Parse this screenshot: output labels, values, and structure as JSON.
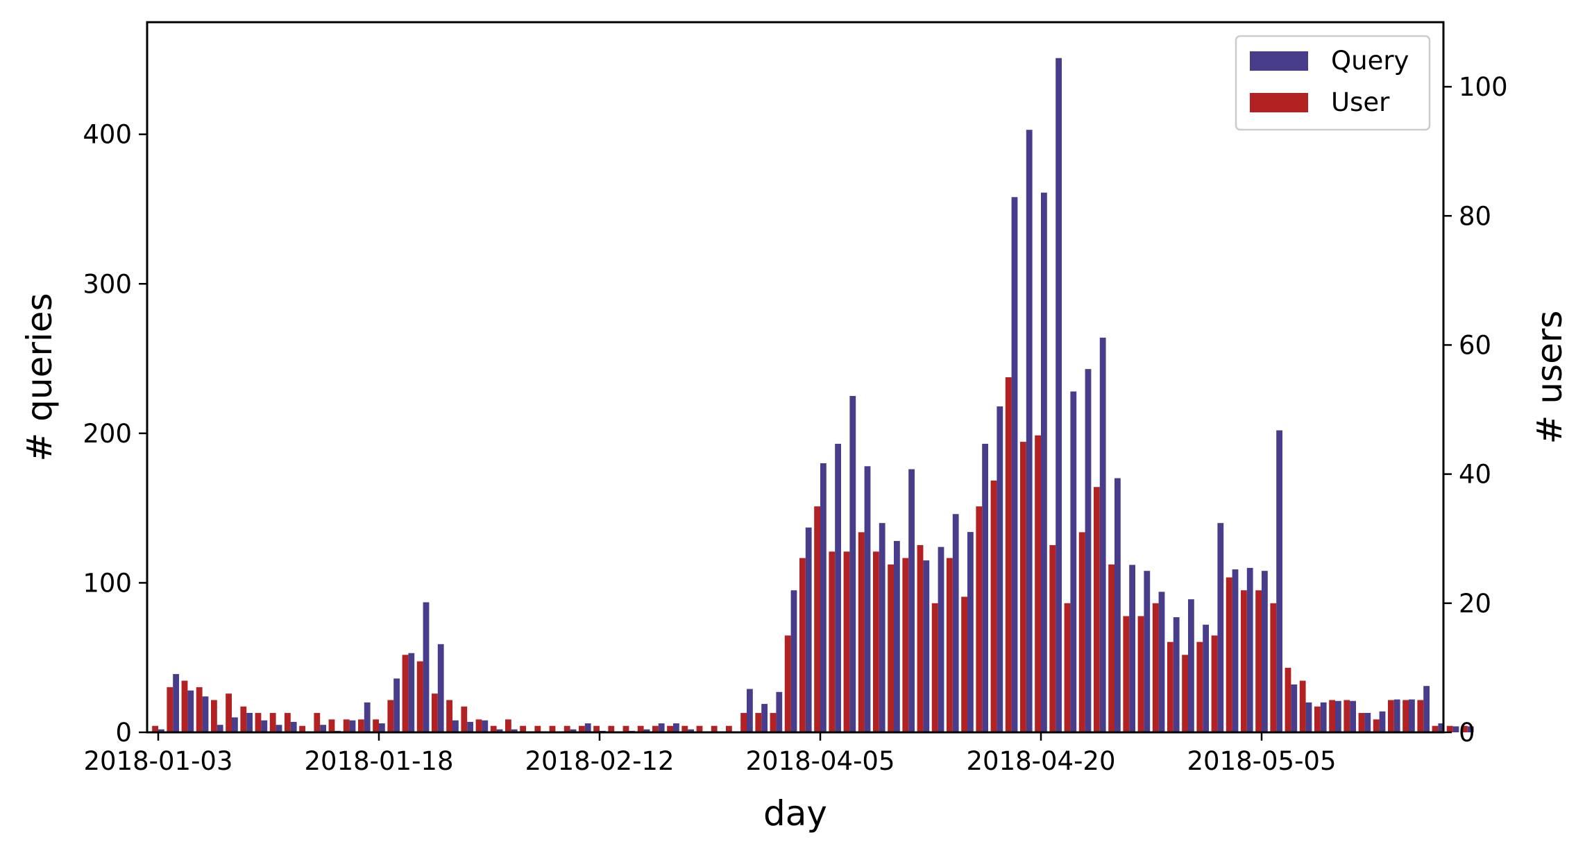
{
  "chart_data": {
    "type": "bar",
    "xlabel": "day",
    "ylabel_left": "# queries",
    "ylabel_right": "# users",
    "xtick_labels": [
      "2018-01-03",
      "2018-01-18",
      "2018-02-12",
      "2018-04-05",
      "2018-04-20",
      "2018-05-05"
    ],
    "xtick_positions": [
      0,
      15,
      30,
      45,
      60,
      75
    ],
    "yticks_left": [
      0,
      100,
      200,
      300,
      400
    ],
    "ylim_left": [
      0,
      475
    ],
    "yticks_right": [
      0,
      20,
      40,
      60,
      80,
      100
    ],
    "ylim_right": [
      0,
      110
    ],
    "legend_position": "top-right",
    "series": [
      {
        "name": "Query",
        "axis": "left",
        "color": "#483D8B",
        "values": [
          2,
          39,
          28,
          24,
          5,
          10,
          13,
          8,
          5,
          7,
          0,
          5,
          1,
          8,
          20,
          6,
          36,
          53,
          87,
          59,
          8,
          7,
          8,
          2,
          2,
          0,
          0,
          0,
          2,
          6,
          1,
          0,
          1,
          2,
          6,
          6,
          2,
          0,
          0,
          0,
          29,
          19,
          27,
          95,
          137,
          180,
          193,
          225,
          178,
          140,
          128,
          176,
          115,
          124,
          146,
          134,
          193,
          218,
          358,
          403,
          361,
          451,
          228,
          243,
          264,
          170,
          112,
          108,
          94,
          77,
          89,
          72,
          140,
          109,
          110,
          108,
          202,
          32,
          20,
          20,
          21,
          21,
          13,
          14,
          22,
          22,
          31,
          6,
          4,
          4
        ]
      },
      {
        "name": "User",
        "axis": "right",
        "color": "#B22222",
        "values": [
          1,
          7,
          8,
          7,
          5,
          6,
          4,
          3,
          3,
          3,
          1,
          3,
          2,
          2,
          2,
          2,
          5,
          12,
          11,
          6,
          5,
          4,
          2,
          1,
          2,
          1,
          1,
          1,
          1,
          1,
          1,
          1,
          1,
          1,
          1,
          1,
          1,
          1,
          1,
          1,
          3,
          3,
          3,
          15,
          27,
          35,
          28,
          28,
          31,
          28,
          26,
          27,
          29,
          20,
          27,
          21,
          35,
          39,
          55,
          45,
          46,
          29,
          20,
          31,
          38,
          26,
          18,
          18,
          20,
          14,
          12,
          14,
          15,
          24,
          22,
          22,
          20,
          10,
          8,
          4,
          5,
          5,
          3,
          2,
          5,
          5,
          5,
          1,
          1,
          1
        ]
      }
    ]
  }
}
